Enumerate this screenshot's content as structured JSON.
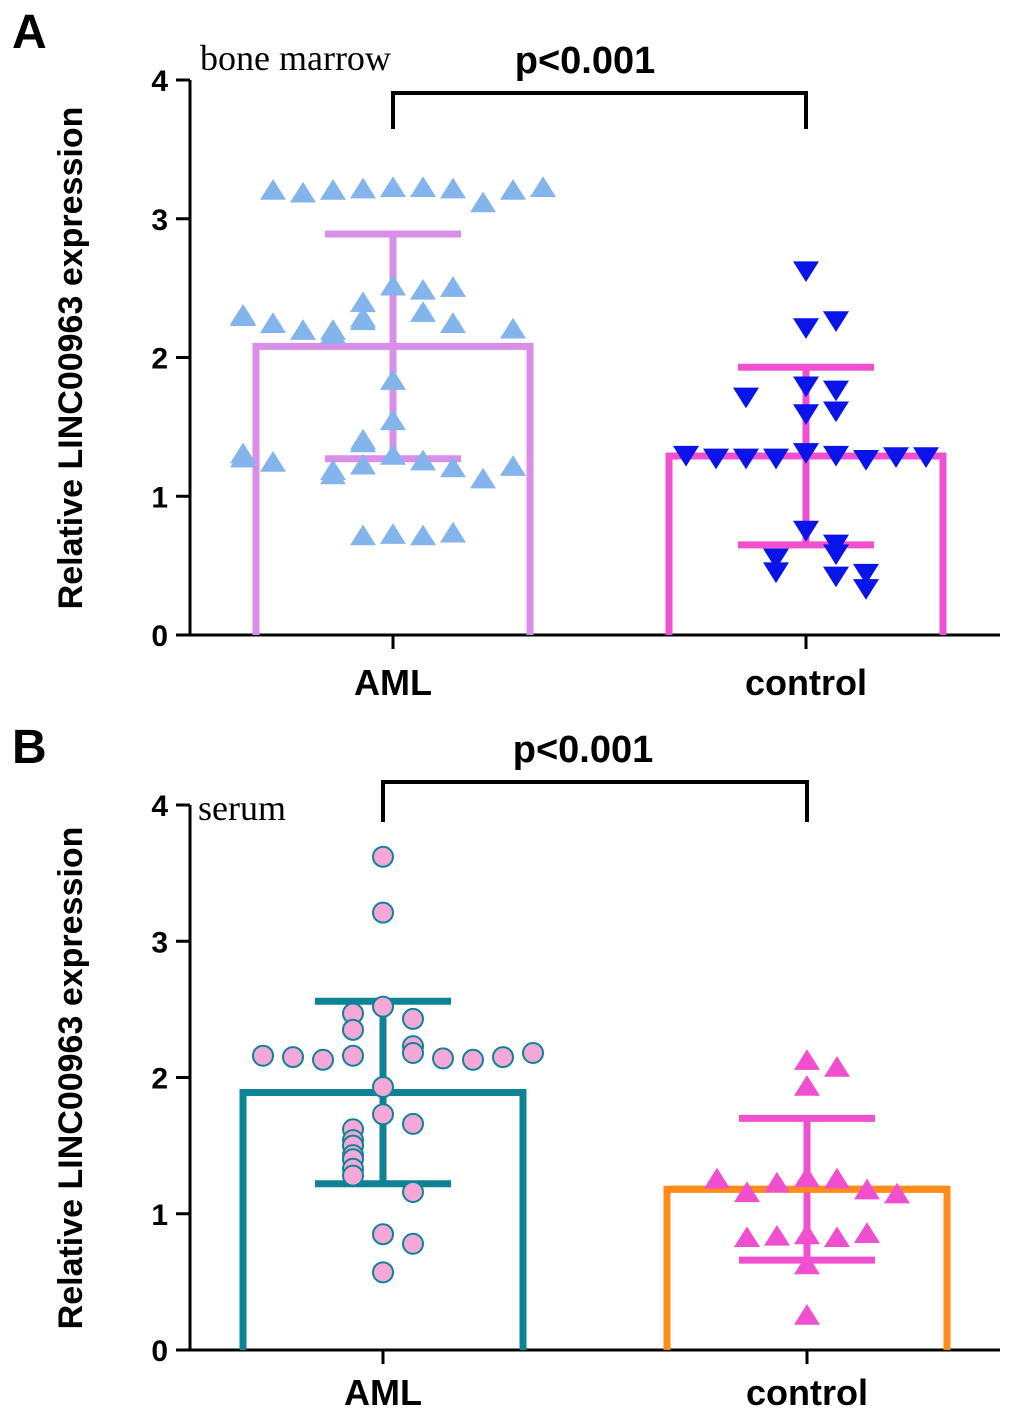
{
  "chart_data": [
    {
      "panel_label": "A",
      "type": "bar",
      "subtitle": "bone marrow",
      "ylabel": "Relative LINC00963 expression",
      "xlabel": "",
      "ylim": [
        0,
        4
      ],
      "yticks": [
        0,
        1,
        2,
        3,
        4
      ],
      "categories": [
        "AML",
        "control"
      ],
      "values": [
        2.08,
        1.29
      ],
      "sd": [
        0.81,
        0.64
      ],
      "significance": "p<0.001",
      "colors": {
        "bars": [
          "#D98EE8",
          "#F050D0"
        ],
        "points": [
          "#84B4EC",
          "#0A14E8"
        ],
        "point_edges": [
          "#84B4EC",
          "#0A14E8"
        ]
      },
      "marker_shapes": [
        "triangle-up",
        "triangle-down"
      ],
      "points": [
        [
          3.22,
          3.22,
          3.21,
          3.21,
          3.2,
          3.11,
          3.18,
          3.2,
          3.2,
          3.22,
          2.51,
          2.48,
          2.39,
          2.5,
          2.32,
          2.28,
          2.26,
          2.24,
          2.19,
          2.16,
          2.19,
          2.2,
          2.24,
          2.29,
          2.3,
          1.83,
          1.54,
          1.29,
          1.25,
          1.22,
          1.2,
          1.18,
          1.38,
          1.15,
          1.12,
          1.21,
          1.4,
          1.24,
          1.27,
          1.3,
          0.72,
          0.71,
          0.71,
          0.73
        ],
        [
          2.63,
          2.22,
          2.27,
          1.8,
          1.77,
          1.6,
          1.62,
          1.72,
          1.32,
          1.3,
          1.28,
          1.27,
          1.28,
          1.29,
          1.28,
          1.29,
          1.3,
          0.76,
          0.66,
          0.59,
          0.56,
          0.46,
          0.43,
          0.45,
          0.34
        ]
      ]
    },
    {
      "panel_label": "B",
      "type": "bar",
      "subtitle": "serum",
      "ylabel": "Relative LINC00963 expression",
      "xlabel": "",
      "ylim": [
        0,
        4
      ],
      "yticks": [
        0,
        1,
        2,
        3,
        4
      ],
      "categories": [
        "AML",
        "control"
      ],
      "values": [
        1.89,
        1.18
      ],
      "sd": [
        0.67,
        0.52
      ],
      "significance": "p<0.001",
      "colors": {
        "bars": [
          "#0E8396",
          "#FF8C19"
        ],
        "errorbars": [
          "#0E8396",
          "#F050D0"
        ],
        "points": [
          "#F4A8D8",
          "#F050D0"
        ],
        "point_edges": [
          "#0E8396",
          "#F050D0"
        ]
      },
      "marker_shapes": [
        "circle",
        "triangle-up"
      ],
      "points": [
        [
          3.62,
          3.21,
          2.52,
          2.43,
          2.47,
          2.35,
          2.23,
          2.18,
          2.16,
          2.14,
          2.13,
          2.13,
          2.15,
          2.15,
          2.16,
          2.18,
          1.93,
          1.73,
          1.66,
          1.62,
          1.54,
          1.5,
          1.43,
          1.4,
          1.33,
          1.28,
          1.16,
          0.85,
          0.78,
          0.57
        ],
        [
          2.12,
          2.07,
          1.93,
          1.26,
          1.25,
          1.22,
          1.17,
          1.15,
          1.14,
          1.25,
          0.84,
          0.82,
          0.83,
          0.85,
          0.82,
          0.62,
          0.25
        ]
      ]
    }
  ]
}
